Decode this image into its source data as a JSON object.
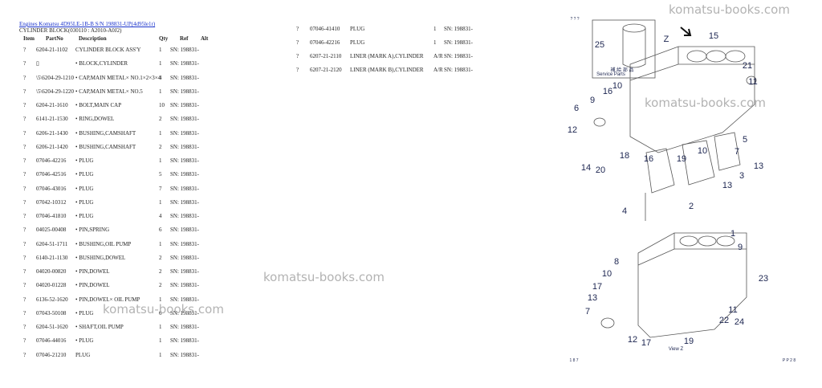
{
  "header": {
    "link": "Engines Komatsu 4D95LE-1B-B S/N 198831-UP(4d95le1r)",
    "subtitle": "CYLINDER BLOCK(030110 : A2010-A0J2)"
  },
  "columns": [
    "Item",
    "PartNo",
    "Description",
    "Qty",
    "Ref",
    "Alt"
  ],
  "left_rows": [
    [
      "?",
      "6204-21-1102",
      "CYLINDER BLOCK ASS'Y",
      "1",
      "SN: 198831-"
    ],
    [
      "?",
      "▯",
      "• BLOCK,CYLINDER",
      "1",
      "SN: 198831-"
    ],
    [
      "?",
      "\\5\\6204-29-1210",
      "• CAP,MAIN METAL× NO.1×2×3×4",
      "4",
      "SN: 198831-"
    ],
    [
      "?",
      "\\5\\6204-29-1220",
      "• CAP,MAIN METAL× NO.5",
      "1",
      "SN: 198831-"
    ],
    [
      "?",
      "6204-21-1610",
      "• BOLT,MAIN CAP",
      "10",
      "SN: 198831-"
    ],
    [
      "?",
      "6141-21-1530",
      "• RING,DOWEL",
      "2",
      "SN: 198831-"
    ],
    [
      "?",
      "6206-21-1430",
      "• BUSHING,CAMSHAFT",
      "1",
      "SN: 198831-"
    ],
    [
      "?",
      "6206-21-1420",
      "• BUSHING,CAMSHAFT",
      "2",
      "SN: 198831-"
    ],
    [
      "?",
      "07046-42216",
      "• PLUG",
      "1",
      "SN: 198831-"
    ],
    [
      "?",
      "07046-42516",
      "• PLUG",
      "5",
      "SN: 198831-"
    ],
    [
      "?",
      "07046-43016",
      "• PLUG",
      "7",
      "SN: 198831-"
    ],
    [
      "?",
      "07042-10312",
      "• PLUG",
      "1",
      "SN: 198831-"
    ],
    [
      "?",
      "07046-41810",
      "• PLUG",
      "4",
      "SN: 198831-"
    ],
    [
      "?",
      "04025-00408",
      "• PIN,SPRING",
      "6",
      "SN: 198831-"
    ],
    [
      "?",
      "6204-51-1711",
      "• BUSHING,OIL PUMP",
      "1",
      "SN: 198831-"
    ],
    [
      "?",
      "6140-21-1130",
      "• BUSHING,DOWEL",
      "2",
      "SN: 198831-"
    ],
    [
      "?",
      "04020-00820",
      "• PIN,DOWEL",
      "2",
      "SN: 198831-"
    ],
    [
      "?",
      "04020-01228",
      "• PIN,DOWEL",
      "2",
      "SN: 198831-"
    ],
    [
      "?",
      "6136-52-1620",
      "• PIN,DOWEL× OIL PUMP",
      "1",
      "SN: 198831-"
    ],
    [
      "?",
      "07043-50108",
      "• PLUG",
      "6",
      "SN: 198831-"
    ],
    [
      "?",
      "6204-51-1620",
      "• SHAFT,OIL PUMP",
      "1",
      "SN: 198831-"
    ],
    [
      "?",
      "07046-44016",
      "• PLUG",
      "1",
      "SN: 198831-"
    ],
    [
      "?",
      "07046-21210",
      "PLUG",
      "1",
      "SN: 198831-"
    ]
  ],
  "right_rows": [
    [
      "?",
      "07046-41410",
      "PLUG",
      "1",
      "SN: 198831-"
    ],
    [
      "?",
      "07046-42216",
      "PLUG",
      "1",
      "SN: 198831-"
    ],
    [
      "?",
      "6207-21-2110",
      "LINER (MARK A),CYLINDER",
      "A/R",
      "SN: 198831-"
    ],
    [
      "?",
      "6207-21-2120",
      "LINER (MARK B),CYLINDER",
      "A/R",
      "SN: 198831-"
    ]
  ],
  "diagram": {
    "callouts": [
      "25",
      "15",
      "Z",
      "21",
      "11",
      "10",
      "16",
      "9",
      "6",
      "12",
      "14",
      "20",
      "18",
      "16",
      "10",
      "19",
      "5",
      "7",
      "3",
      "13",
      "13",
      "2",
      "4",
      "1",
      "9",
      "8",
      "10",
      "17",
      "13",
      "7",
      "23",
      "11",
      "22",
      "24",
      "12",
      "17",
      "19"
    ],
    "service_parts_jp": "補 給 部 品",
    "service_parts": "Service Parts",
    "caption": "View Z",
    "top_marks": "? ? ?",
    "page_left": "1 8 7",
    "page_right": "P P 2 8"
  },
  "watermarks": [
    "komatsu-books.com",
    "komatsu-books.com",
    "komatsu-books.com",
    "komatsu-books.com"
  ]
}
